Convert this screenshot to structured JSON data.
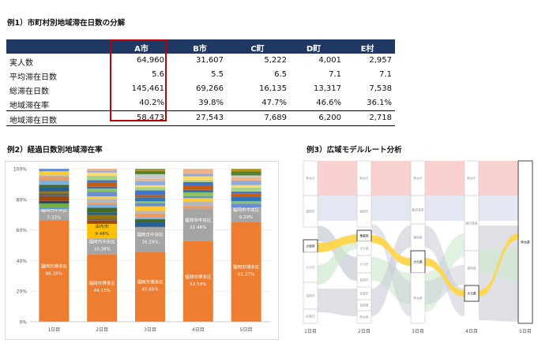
{
  "titles": {
    "t1": "例1）市町村別地域滞在日数の分解",
    "t2": "例2）経過日数別地域滞在率",
    "t3": "例3）広域モデルルート分析"
  },
  "table": {
    "columns": [
      "A市",
      "B市",
      "C町",
      "D町",
      "E村"
    ],
    "rows": [
      {
        "label": "実人数",
        "values": [
          "64,960",
          "31,607",
          "5,222",
          "4,001",
          "2,957"
        ]
      },
      {
        "label": "平均滞在日数",
        "values": [
          "5.6",
          "5.5",
          "6.5",
          "7.1",
          "7.1"
        ]
      },
      {
        "label": "総滞在日数",
        "values": [
          "145,461",
          "69,266",
          "16,135",
          "13,317",
          "7,538"
        ]
      },
      {
        "label": "地域滞在率",
        "values": [
          "40.2%",
          "39.8%",
          "47.7%",
          "46.6%",
          "36.1%"
        ]
      },
      {
        "label": "地域滞在日数",
        "values": [
          "58,473",
          "27,543",
          "7,689",
          "6,200",
          "2,718"
        ]
      }
    ]
  },
  "chart_data": [
    {
      "type": "bar",
      "stacked": true,
      "categories": [
        "1日目",
        "2日目",
        "3日目",
        "4日目",
        "5日目"
      ],
      "ylim": [
        0,
        100
      ],
      "yticks": [
        "0%",
        "20%",
        "40%",
        "60%",
        "80%",
        "100%"
      ],
      "grid": true,
      "series": [
        {
          "name": "福岡市博多区",
          "color": "#ed7d31",
          "values": [
            66.26,
            44.13,
            45.65,
            52.59,
            65.37
          ],
          "labels": [
            "福岡市博多区\n66.26%",
            "福岡市博多区\n44.13%",
            "福岡市博多区\n45.65%",
            "福岡市博多区\n52.59%",
            "福岡市博多区\n65.37%"
          ]
        },
        {
          "name": "福岡市中央区",
          "color": "#a5a5a5",
          "values": [
            7.33,
            10.38,
            16.29,
            21.46,
            9.29
          ],
          "labels": [
            "福岡市中央区\n7.33%",
            "福岡市中央区\n10.38%",
            "福岡市中央区\n16.29%",
            "福岡市中央区\n21.46%",
            "福岡市中央区\n9.29%"
          ]
        },
        {
          "name": "由布市",
          "color": "#ffc000",
          "values": [
            0,
            9.48,
            0,
            0,
            0
          ],
          "labels": [
            "",
            "由布市\n9.48%",
            "",
            "",
            ""
          ]
        }
      ]
    },
    {
      "type": "sankey",
      "columns": [
        "1日目",
        "2日目",
        "3日目",
        "4日目",
        "5日目"
      ],
      "node_labels": {
        "col1": [
          "熊本市",
          "福岡市",
          "大阪府",
          "大分市",
          "長崎市",
          "佐賀市"
        ],
        "col2": [
          "熊本市",
          "福岡市",
          "華都府",
          "大分県",
          "大分市",
          "長崎市",
          "佐賀市",
          "長崎県",
          "熊本県"
        ],
        "col3": [
          "熊本市",
          "鹿児島県",
          "福岡県",
          "大分県",
          "熊本県"
        ],
        "col4": [
          "熊本市",
          "鹿児島県",
          "福岡県",
          "大分県"
        ],
        "col5": [
          "熊本県"
        ]
      }
    }
  ]
}
